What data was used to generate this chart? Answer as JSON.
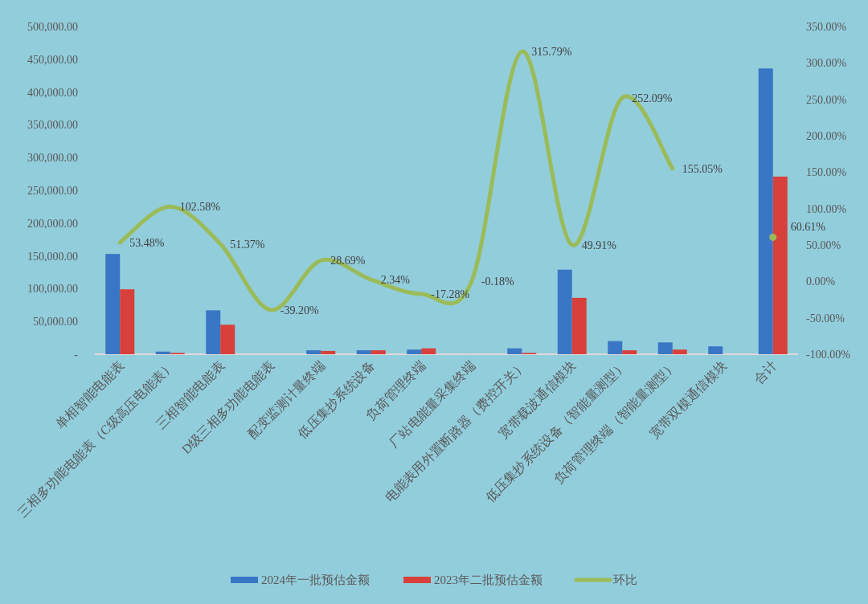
{
  "chart_data": {
    "type": "bar",
    "categories": [
      "单相智能电能表",
      "三相多功能电能表（C级高压电能表）",
      "三相智能电能表",
      "D级三相多功能电能表",
      "配变监测计量终端",
      "低压集抄系统设备",
      "负荷管理终端",
      "厂站电能量采集终端",
      "电能表用外置断路器（费控开关）",
      "宽带载波通信模块",
      "低压集抄系统设备（智能量测型）",
      "负荷管理终端（智能量测型）",
      "宽带双模通信模块",
      "合计"
    ],
    "series": [
      {
        "name": "2024年一批预估金额",
        "color": "#3a76c6",
        "values": [
          153000,
          4000,
          67000,
          0,
          6000,
          6000,
          7000,
          0,
          9000,
          129000,
          20000,
          18000,
          12000,
          436000
        ]
      },
      {
        "name": "2023年二批预估金额",
        "color": "#d8403b",
        "values": [
          99000,
          2000,
          45000,
          0,
          5000,
          6000,
          9000,
          0,
          2000,
          86000,
          6000,
          7000,
          0,
          271000
        ]
      },
      {
        "name": "环比",
        "type": "line",
        "axis": "y2",
        "color": "#9bbb59",
        "values": [
          53.48,
          102.58,
          51.37,
          -39.2,
          28.69,
          2.34,
          -17.28,
          -0.18,
          315.79,
          49.91,
          252.09,
          155.05,
          null,
          60.61
        ],
        "value_labels": [
          "53.48%",
          "102.58%",
          "51.37%",
          "-39.20%",
          "28.69%",
          "2.34%",
          "-17.28%",
          "-0.18%",
          "315.79%",
          "49.91%",
          "252.09%",
          "155.05%",
          null,
          "60.61%"
        ]
      }
    ],
    "ylim": [
      0,
      500000
    ],
    "yticks": [
      {
        "value": 0,
        "label": "-"
      },
      {
        "value": 50000,
        "label": "50,000.00"
      },
      {
        "value": 100000,
        "label": "100,000.00"
      },
      {
        "value": 150000,
        "label": "150,000.00"
      },
      {
        "value": 200000,
        "label": "200,000.00"
      },
      {
        "value": 250000,
        "label": "250,000.00"
      },
      {
        "value": 300000,
        "label": "300,000.00"
      },
      {
        "value": 350000,
        "label": "350,000.00"
      },
      {
        "value": 400000,
        "label": "400,000.00"
      },
      {
        "value": 450000,
        "label": "450,000.00"
      },
      {
        "value": 500000,
        "label": "500,000.00"
      }
    ],
    "y2lim": [
      -100,
      350
    ],
    "y2ticks": [
      {
        "value": -100,
        "label": "-100.00%"
      },
      {
        "value": -50,
        "label": "-50.00%"
      },
      {
        "value": 0,
        "label": "0.00%"
      },
      {
        "value": 50,
        "label": "50.00%"
      },
      {
        "value": 100,
        "label": "100.00%"
      },
      {
        "value": 150,
        "label": "150.00%"
      },
      {
        "value": 200,
        "label": "200.00%"
      },
      {
        "value": 250,
        "label": "250.00%"
      },
      {
        "value": 300,
        "label": "300.00%"
      },
      {
        "value": 350,
        "label": "350.00%"
      }
    ],
    "legend": "bottom"
  }
}
